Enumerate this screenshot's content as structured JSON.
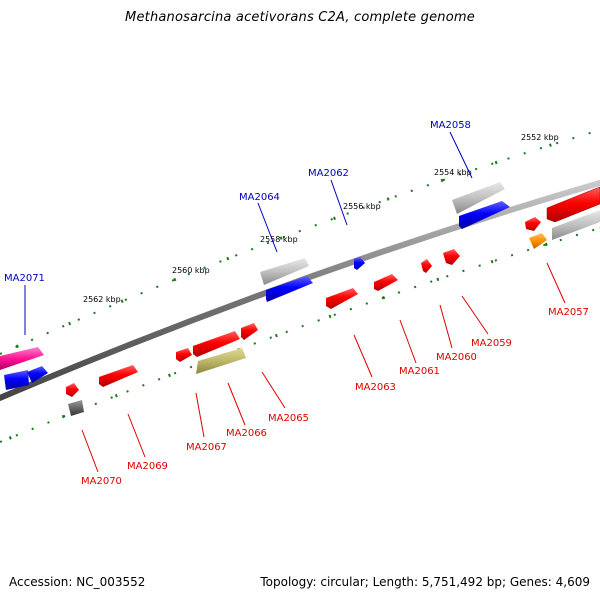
{
  "title": "Methanosarcina acetivorans C2A, complete genome",
  "footer": {
    "accession": "Accession: NC_003552",
    "topology": "Topology: circular; Length: 5,751,492 bp; Genes: 4,609"
  },
  "colors": {
    "backbone": "#777777",
    "tick": "#1a7a1a",
    "forward_label": "#0000c0",
    "reverse_label": "#e00000"
  },
  "kbp_labels": [
    "2552 kbp",
    "2554 kbp",
    "2556 kbp",
    "2558 kbp",
    "2560 kbp",
    "2562 kbp"
  ],
  "genes_forward": [
    "MA2058",
    "MA2062",
    "MA2064",
    "MA2071"
  ],
  "genes_reverse": [
    "MA2057",
    "MA2059",
    "MA2060",
    "MA2061",
    "MA2063",
    "MA2065",
    "MA2066",
    "MA2067",
    "MA2069",
    "MA2070"
  ]
}
